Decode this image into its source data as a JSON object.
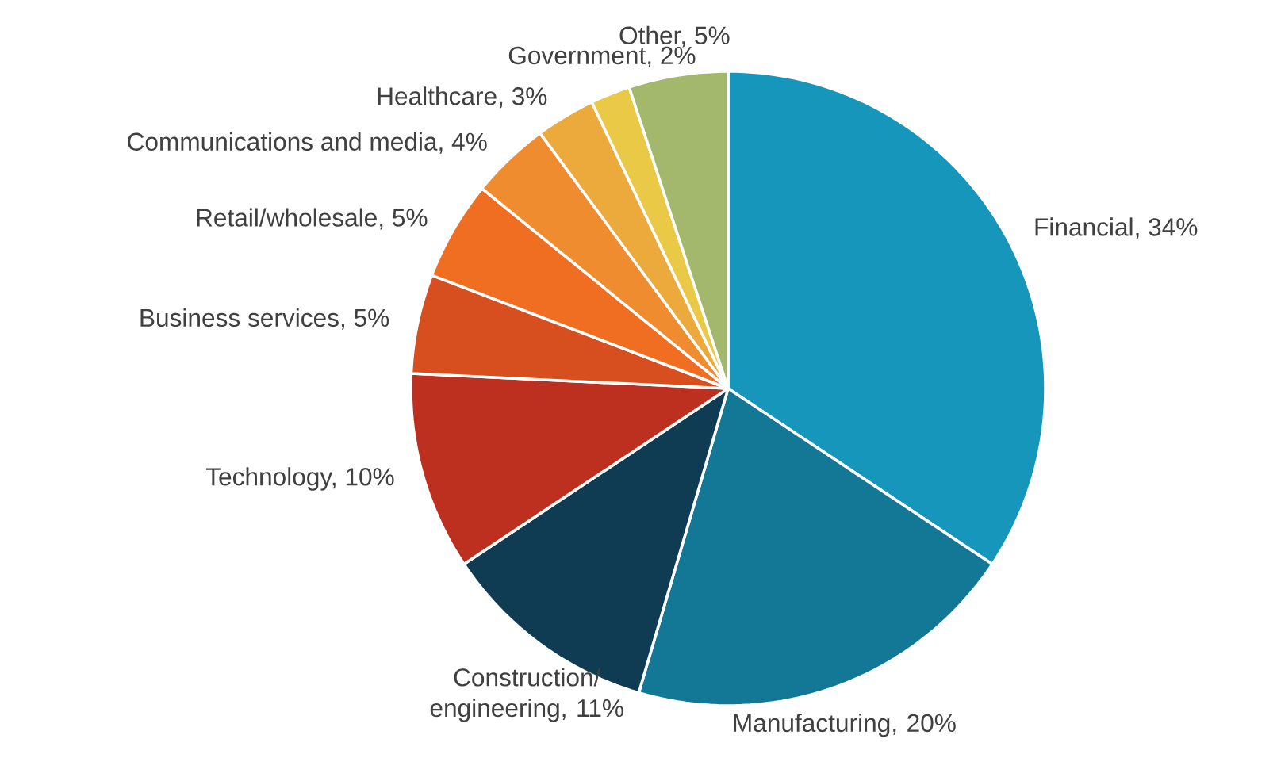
{
  "chart_data": {
    "type": "pie",
    "categories": [
      "Financial, 34%",
      "Manufacturing, 20%",
      "Construction/ engineering, 11%",
      "Technology, 10%",
      "Business services, 5%",
      "Retail/wholesale, 5%",
      "Communications and media, 4%",
      "Healthcare, 3%",
      "Government, 2%",
      "Other, 5%"
    ],
    "values": [
      34,
      20,
      11,
      10,
      5,
      5,
      4,
      3,
      2,
      5
    ],
    "colors": [
      "#1696bb",
      "#137796",
      "#0f3b53",
      "#bd2f1e",
      "#d84f1f",
      "#f06e21",
      "#ef8c2f",
      "#ebaa3b",
      "#e9c945",
      "#a3b86c"
    ]
  }
}
